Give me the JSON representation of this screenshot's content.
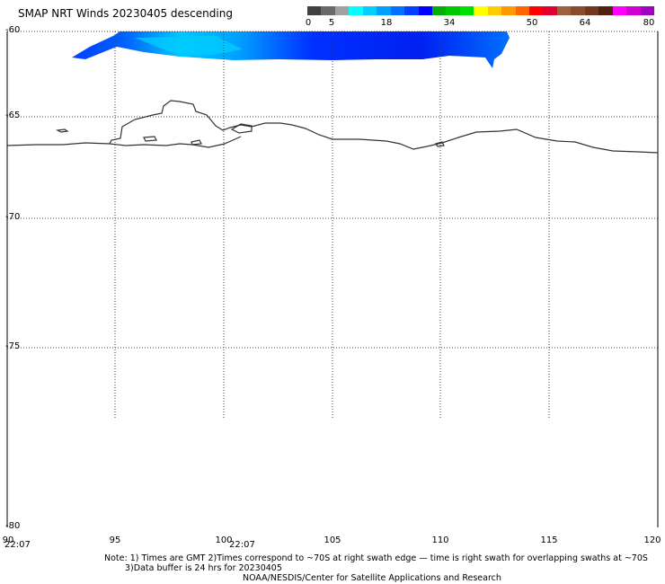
{
  "title": "SMAP NRT Winds  20230405 descending",
  "colorbar": {
    "labels": [
      "0",
      "5",
      "18",
      "34",
      "50",
      "64",
      "80"
    ],
    "colors": [
      "#404040",
      "#6a6a6a",
      "#a0a0a0",
      "#00ffff",
      "#00d0ff",
      "#00a0ff",
      "#0070ff",
      "#0040ff",
      "#0000ff",
      "#00b000",
      "#00c800",
      "#00e000",
      "#ffff00",
      "#ffcc00",
      "#ff9900",
      "#ff6600",
      "#ff0000",
      "#e00030",
      "#a06040",
      "#8a4a30",
      "#703620",
      "#502010",
      "#ff00ff",
      "#d000d0",
      "#a000c0"
    ]
  },
  "lat_labels": [
    "-60",
    "-65",
    "-70",
    "-75",
    "-80"
  ],
  "lon_labels": [
    "90",
    "95",
    "100",
    "105",
    "110",
    "115",
    "120"
  ],
  "times": [
    "22:07",
    "22:07"
  ],
  "notes": {
    "line1": "Note: 1) Times are GMT 2)Times correspond to ~70S at right swath edge — time is right swath for overlapping swaths at ~70S",
    "line2": "3)Data buffer is 24 hrs for 20230405",
    "line3": "NOAA/NESDIS/Center for Satellite Applications and Research"
  }
}
